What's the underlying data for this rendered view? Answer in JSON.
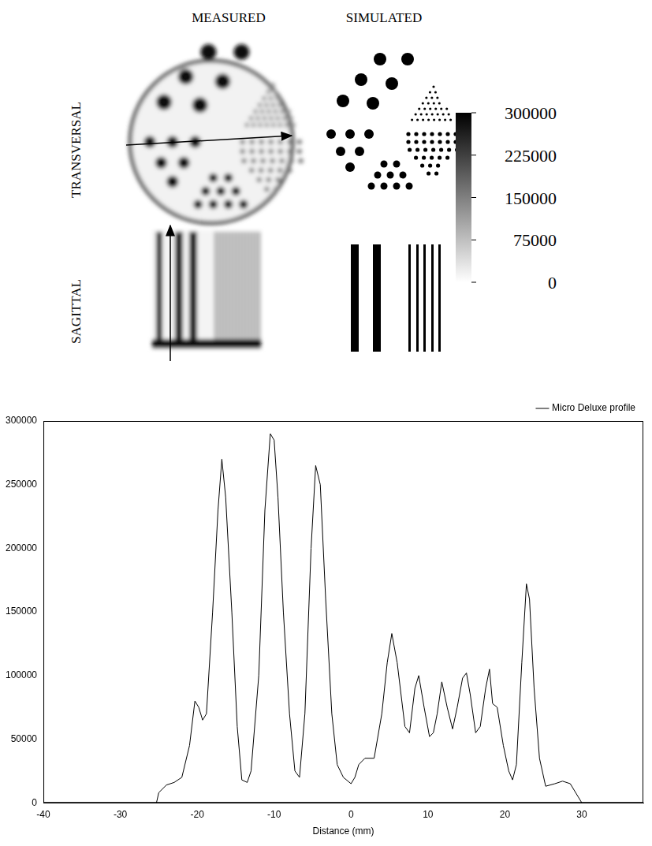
{
  "figure": {
    "column_titles": [
      "MEASURED",
      "SIMULATED"
    ],
    "row_titles": [
      "TRANSVERSAL",
      "SAGITTAL"
    ],
    "color_bar": {
      "range": [
        0,
        300000
      ],
      "ticks": [
        0,
        75000,
        150000,
        225000,
        300000
      ]
    }
  },
  "chart_data": {
    "type": "line",
    "xlabel": "Distance (mm)",
    "xlim": [
      -40,
      38
    ],
    "xticks": [
      -40,
      -30,
      -20,
      -10,
      0,
      10,
      20,
      30
    ],
    "ylim": [
      0,
      300000
    ],
    "yticks": [
      0,
      50000,
      100000,
      150000,
      200000,
      250000,
      300000
    ],
    "grid": false,
    "legend": "top-right",
    "series": [
      {
        "name": "Micro Deluxe profile",
        "color": "#000000",
        "x": [
          -25.3,
          -25,
          -24,
          -23,
          -22,
          -21,
          -20.3,
          -19.8,
          -19.3,
          -18.8,
          -18,
          -17.3,
          -16.8,
          -16.3,
          -15.5,
          -14.8,
          -14.2,
          -13.5,
          -13,
          -12,
          -11.2,
          -10.5,
          -10,
          -9.5,
          -8.8,
          -8,
          -7.3,
          -6.7,
          -6,
          -5.2,
          -4.6,
          -4,
          -3.3,
          -2.5,
          -1.8,
          -1,
          0,
          0.5,
          1,
          1.8,
          3,
          4,
          4.7,
          5.3,
          6,
          7,
          7.6,
          8.3,
          8.8,
          9.5,
          10.2,
          10.7,
          11.2,
          11.8,
          12.5,
          13.2,
          13.8,
          14.5,
          15,
          15.5,
          16.2,
          16.8,
          17.5,
          18,
          18.4,
          19,
          19.8,
          20.5,
          21,
          21.5,
          22.2,
          22.8,
          23.2,
          23.8,
          24.5,
          25.3,
          26.5,
          27.5,
          28.5,
          29.5,
          30
        ],
        "values": [
          0,
          8000,
          14000,
          16000,
          20000,
          45000,
          80000,
          75000,
          65000,
          70000,
          150000,
          230000,
          270000,
          240000,
          150000,
          60000,
          18000,
          16000,
          25000,
          100000,
          230000,
          290000,
          285000,
          240000,
          150000,
          70000,
          25000,
          20000,
          70000,
          200000,
          265000,
          250000,
          160000,
          70000,
          30000,
          20000,
          15000,
          20000,
          30000,
          35000,
          35000,
          70000,
          110000,
          133000,
          110000,
          60000,
          55000,
          90000,
          100000,
          75000,
          52000,
          55000,
          70000,
          95000,
          75000,
          58000,
          75000,
          98000,
          102000,
          85000,
          55000,
          60000,
          90000,
          105000,
          78000,
          75000,
          45000,
          25000,
          18000,
          30000,
          110000,
          172000,
          160000,
          90000,
          35000,
          13000,
          15000,
          17000,
          15000,
          5000,
          0
        ]
      }
    ]
  }
}
